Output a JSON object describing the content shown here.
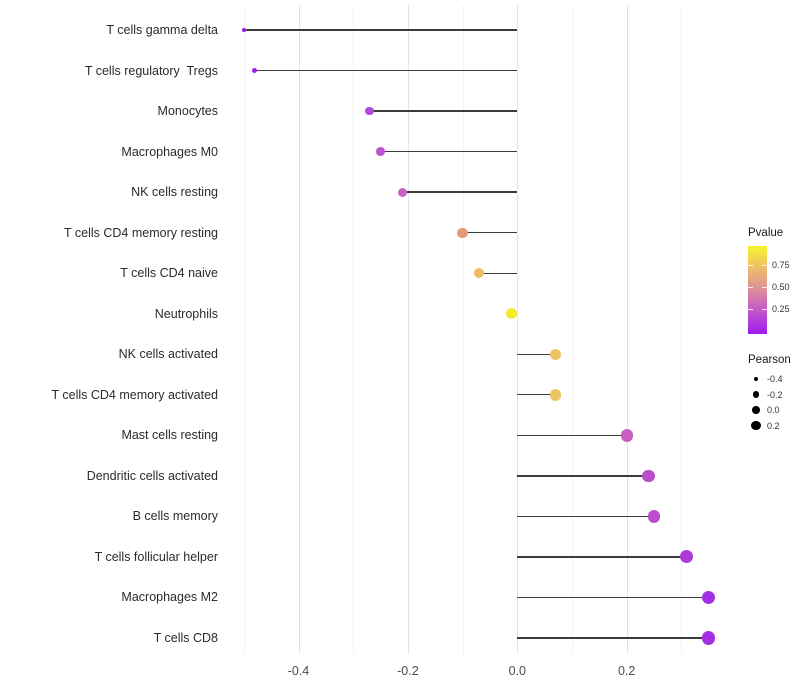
{
  "chart_data": {
    "type": "scatter",
    "subtype": "lollipop",
    "title": "",
    "xlabel": "",
    "ylabel": "",
    "background": "#ffffff",
    "xlim": [
      -0.54,
      0.39
    ],
    "x_major_ticks": [
      -0.4,
      -0.2,
      0.0,
      0.2
    ],
    "x_tick_labels": [
      "-0.4",
      "-0.2",
      "0.0",
      "0.2"
    ],
    "x_minor_ticks": [
      -0.5,
      -0.3,
      -0.1,
      0.1,
      0.3
    ],
    "grid": true,
    "stem_color": "#3c3c3c",
    "points": [
      {
        "label": "T cells gamma delta",
        "pearson": -0.5,
        "color": "#9b21e8"
      },
      {
        "label": "T cells regulatory  Tregs",
        "pearson": -0.48,
        "color": "#9b21e8"
      },
      {
        "label": "Monocytes",
        "pearson": -0.27,
        "color": "#b04cd8"
      },
      {
        "label": "Macrophages M0",
        "pearson": -0.25,
        "color": "#bc55d0"
      },
      {
        "label": "NK cells resting",
        "pearson": -0.21,
        "color": "#c765c3"
      },
      {
        "label": "T cells CD4 memory resting",
        "pearson": -0.1,
        "color": "#e39a78"
      },
      {
        "label": "T cells CD4 naive",
        "pearson": -0.07,
        "color": "#ecbb62"
      },
      {
        "label": "Neutrophils",
        "pearson": -0.01,
        "color": "#f2ed2c"
      },
      {
        "label": "NK cells activated",
        "pearson": 0.07,
        "color": "#edc363"
      },
      {
        "label": "T cells CD4 memory activated",
        "pearson": 0.07,
        "color": "#edc363"
      },
      {
        "label": "Mast cells resting",
        "pearson": 0.2,
        "color": "#c75ec2"
      },
      {
        "label": "Dendritic cells activated",
        "pearson": 0.24,
        "color": "#bb4ccd"
      },
      {
        "label": "B cells memory",
        "pearson": 0.25,
        "color": "#bb4ccd"
      },
      {
        "label": "T cells follicular helper",
        "pearson": 0.31,
        "color": "#ad3ada"
      },
      {
        "label": "Macrophages M2",
        "pearson": 0.35,
        "color": "#a52fe2"
      },
      {
        "label": "T cells CD8",
        "pearson": 0.35,
        "color": "#a52fe2"
      }
    ],
    "legend": {
      "position": "right",
      "pvalue": {
        "title": "Pvalue",
        "tick_labels": [
          "0.75",
          "0.50",
          "0.25"
        ],
        "gradient_stops": [
          "#a01bf0 0%",
          "#c75ec2 30%",
          "#dd8e99 50%",
          "#eebc68 75%",
          "#f8f42a 100%"
        ]
      },
      "pearson": {
        "title": "Pearson",
        "items": [
          {
            "label": "-0.4",
            "value": -0.4
          },
          {
            "label": "-0.2",
            "value": -0.2
          },
          {
            "label": "0.0",
            "value": 0.0
          },
          {
            "label": "0.2",
            "value": 0.2
          }
        ]
      }
    }
  }
}
